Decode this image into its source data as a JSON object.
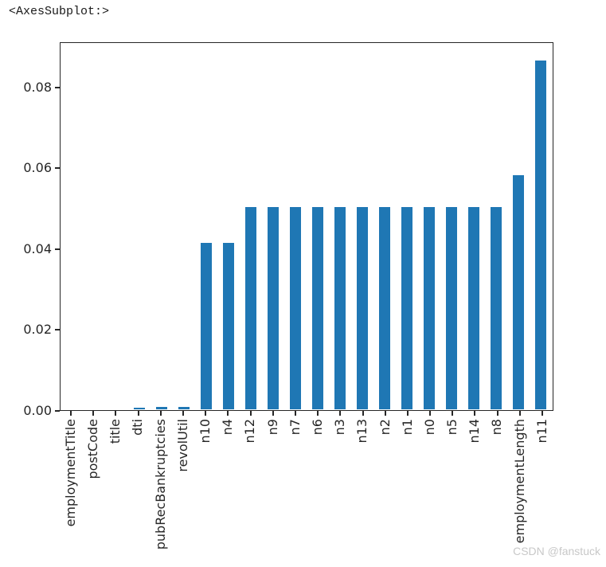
{
  "notebook": {
    "repr_text": "<AxesSubplot:>"
  },
  "watermark": {
    "text": "CSDN @fanstuck",
    "color": "#c8c8c8"
  },
  "chart_data": {
    "type": "bar",
    "title": "",
    "xlabel": "",
    "ylabel": "",
    "categories": [
      "employmentTitle",
      "postCode",
      "title",
      "dti",
      "pubRecBankruptcies",
      "revolUtil",
      "n10",
      "n4",
      "n12",
      "n9",
      "n7",
      "n6",
      "n3",
      "n13",
      "n2",
      "n1",
      "n0",
      "n5",
      "n14",
      "n8",
      "employmentLength",
      "n11"
    ],
    "values": [
      0.0,
      0.0,
      0.0,
      0.0004,
      0.0006,
      0.0006,
      0.0415,
      0.0415,
      0.0504,
      0.0504,
      0.0504,
      0.0504,
      0.0504,
      0.0504,
      0.0504,
      0.0504,
      0.0504,
      0.0504,
      0.0504,
      0.0504,
      0.0584,
      0.087
    ],
    "bar_color": "#1f77b4",
    "axis_color": "#262626",
    "ylim": [
      0,
      0.0912
    ],
    "y_ticks": [
      0.0,
      0.02,
      0.04,
      0.06,
      0.08
    ],
    "y_tick_labels": [
      "0.00",
      "0.02",
      "0.04",
      "0.06",
      "0.08"
    ],
    "x_tick_label_rotation_deg": 90,
    "grid": false,
    "legend": "none",
    "bar_width_fraction": 0.5
  }
}
